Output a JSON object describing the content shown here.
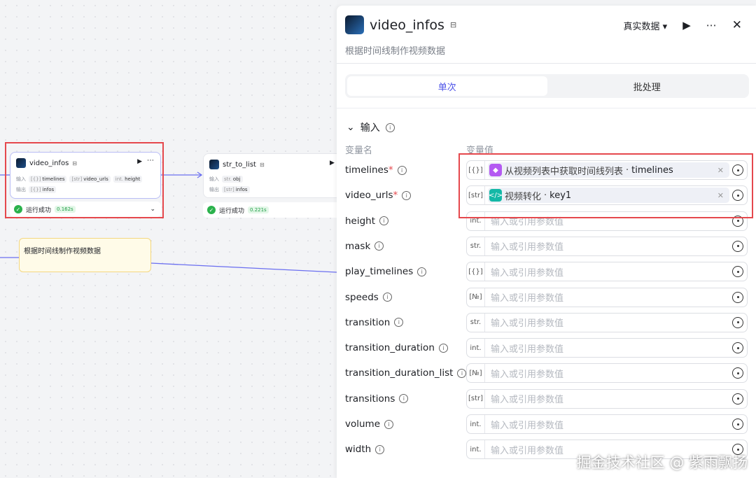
{
  "canvas": {
    "node1": {
      "title": "video_infos",
      "input_label": "输入",
      "output_label": "输出",
      "inputs": [
        {
          "type": "[{}]",
          "name": "timelines"
        },
        {
          "type": "[str]",
          "name": "video_urls"
        },
        {
          "type": "int.",
          "name": "height"
        }
      ],
      "outputs": [
        {
          "type": "[{}]",
          "name": "infos"
        }
      ],
      "status": "运行成功",
      "time": "0.162s"
    },
    "node2": {
      "title": "str_to_list",
      "input_label": "输入",
      "output_label": "输出",
      "inputs": [
        {
          "type": "str.",
          "name": "obj"
        }
      ],
      "outputs": [
        {
          "type": "[str]",
          "name": "infos"
        }
      ],
      "status": "运行成功",
      "time": "0.221s"
    },
    "note": "根据时间线制作视频数据"
  },
  "panel": {
    "title": "video_infos",
    "description": "根据时间线制作视频数据",
    "data_mode": "真实数据",
    "tabs": [
      {
        "label": "单次",
        "active": true
      },
      {
        "label": "批处理",
        "active": false
      }
    ],
    "section": "输入",
    "col_name": "变量名",
    "col_value": "变量值",
    "placeholder": "输入或引用参数值",
    "params": [
      {
        "name": "timelines",
        "required": true,
        "type": "[{}]",
        "ref_source": "从视频列表中获取时间线列表",
        "ref_key": "timelines",
        "ref_icon": "cube-icon",
        "ref_color": "#b45af2"
      },
      {
        "name": "video_urls",
        "required": true,
        "type": "[str]",
        "ref_source": "视频转化",
        "ref_key": "key1",
        "ref_icon": "code-icon",
        "ref_color": "#14b8a6"
      },
      {
        "name": "height",
        "type": "int."
      },
      {
        "name": "mask",
        "type": "str."
      },
      {
        "name": "play_timelines",
        "type": "[{}]"
      },
      {
        "name": "speeds",
        "type": "[№]"
      },
      {
        "name": "transition",
        "type": "str."
      },
      {
        "name": "transition_duration",
        "type": "int."
      },
      {
        "name": "transition_duration_list",
        "type": "[№]"
      },
      {
        "name": "transitions",
        "type": "[str]"
      },
      {
        "name": "volume",
        "type": "int."
      },
      {
        "name": "width",
        "type": "int."
      }
    ]
  },
  "watermark": "掘金技术社区 @ 紫雨飘扬"
}
